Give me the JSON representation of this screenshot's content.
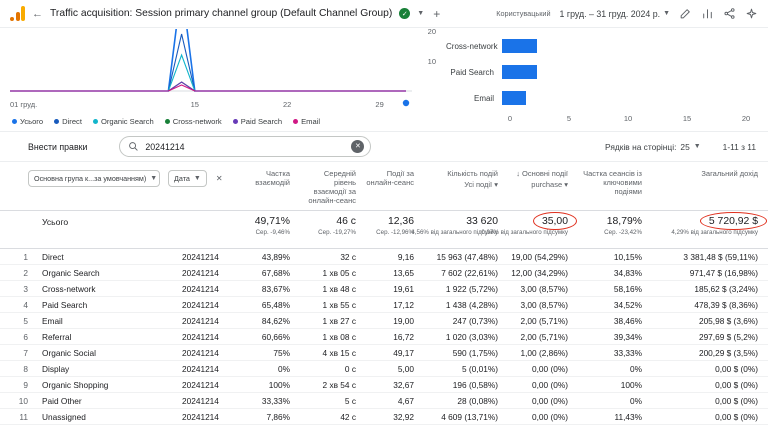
{
  "app": {
    "title": "Traffic acquisition: Session primary channel group (Default Channel Group)",
    "user_type_label": "Користувацький",
    "date_range": "1 груд. – 31 груд. 2024 р."
  },
  "line_chart": {
    "type": "line",
    "days_in_month": 31,
    "y_max_visible": 20,
    "y_ticks": [
      "20",
      "10"
    ],
    "x_axis": [
      {
        "label": "01 груд.",
        "day": 1
      },
      {
        "label": "15",
        "day": 15
      },
      {
        "label": "22",
        "day": 22
      },
      {
        "label": "29",
        "day": 29
      }
    ],
    "series": [
      {
        "name": "Усього",
        "color": "#1a73e8",
        "baseline": 0,
        "peak_day": 14,
        "peak_value": 35
      },
      {
        "name": "Direct",
        "color": "#185abc",
        "baseline": 0,
        "peak_day": 14,
        "peak_value": 19
      },
      {
        "name": "Organic Search",
        "color": "#12b5cb",
        "baseline": 0,
        "peak_day": 14,
        "peak_value": 12
      },
      {
        "name": "Cross-network",
        "color": "#188038",
        "baseline": 0,
        "peak_day": 14,
        "peak_value": 3
      },
      {
        "name": "Paid Search",
        "color": "#673ab7",
        "baseline": 0,
        "peak_day": 14,
        "peak_value": 3
      },
      {
        "name": "Email",
        "color": "#d01884",
        "baseline": 0,
        "peak_day": 14,
        "peak_value": 2
      }
    ]
  },
  "bar_chart": {
    "type": "bar",
    "categories": [
      "Cross-network",
      "Paid Search",
      "Email"
    ],
    "values": [
      3,
      3,
      2
    ],
    "x_ticks": [
      0,
      5,
      10,
      15,
      20
    ],
    "x_max": 20,
    "bar_color": "#1a73e8"
  },
  "toolbar": {
    "edit_button": "Внести правки",
    "search_value": "20241214",
    "rows_per_page_label": "Рядків на сторінці:",
    "rows_per_page_value": "25",
    "pagination": "1-11 з 11"
  },
  "table": {
    "dimension_dropdown": "Основна група к...за умовчанням)",
    "secondary_dimension": "Дата",
    "columns": [
      {
        "title": "Частка взаємодій"
      },
      {
        "title": "Середній рівень взаємодії за онлайн-сеанс"
      },
      {
        "title": "Події за онлайн-сеанс"
      },
      {
        "title": "Кількість подій",
        "sub": "Усі події"
      },
      {
        "title": "Основні події",
        "sub": "purchase",
        "sorted": "desc"
      },
      {
        "title": "Частка сеансів із ключовими подіями"
      },
      {
        "title": "Загальний дохід"
      }
    ],
    "totals": {
      "label": "Усього",
      "values": [
        {
          "main": "49,71%",
          "sub": "Сер. -9,46%"
        },
        {
          "main": "46 с",
          "sub": "Сер. -19,27%"
        },
        {
          "main": "12,36",
          "sub": "Сер. -12,96%"
        },
        {
          "main": "33 620",
          "sub": "4,56% від загального підсумку"
        },
        {
          "main": "35,00",
          "sub": "0,07% від загального підсумку",
          "circled": true
        },
        {
          "main": "18,79%",
          "sub": "Сер. -23,42%"
        },
        {
          "main": "5 720,92 $",
          "sub": "4,29% від загального підсумку",
          "circled": true
        }
      ]
    },
    "rows": [
      {
        "num": "1",
        "channel": "Direct",
        "date": "20241214",
        "values": [
          "43,89%",
          "32 с",
          "9,16",
          "15 963 (47,48%)",
          "19,00 (54,29%)",
          "10,15%",
          "3 381,48 $ (59,11%)"
        ]
      },
      {
        "num": "2",
        "channel": "Organic Search",
        "date": "20241214",
        "values": [
          "67,68%",
          "1 хв 05 с",
          "13,65",
          "7 602 (22,61%)",
          "12,00 (34,29%)",
          "34,83%",
          "971,47 $ (16,98%)"
        ]
      },
      {
        "num": "3",
        "channel": "Cross-network",
        "date": "20241214",
        "values": [
          "83,67%",
          "1 хв 48 с",
          "19,61",
          "1 922 (5,72%)",
          "3,00 (8,57%)",
          "58,16%",
          "185,62 $ (3,24%)"
        ]
      },
      {
        "num": "4",
        "channel": "Paid Search",
        "date": "20241214",
        "values": [
          "65,48%",
          "1 хв 55 с",
          "17,12",
          "1 438 (4,28%)",
          "3,00 (8,57%)",
          "34,52%",
          "478,39 $ (8,36%)"
        ]
      },
      {
        "num": "5",
        "channel": "Email",
        "date": "20241214",
        "values": [
          "84,62%",
          "1 хв 27 с",
          "19,00",
          "247 (0,73%)",
          "2,00 (5,71%)",
          "38,46%",
          "205,98 $ (3,6%)"
        ]
      },
      {
        "num": "6",
        "channel": "Referral",
        "date": "20241214",
        "values": [
          "60,66%",
          "1 хв 08 с",
          "16,72",
          "1 020 (3,03%)",
          "2,00 (5,71%)",
          "39,34%",
          "297,69 $ (5,2%)"
        ]
      },
      {
        "num": "7",
        "channel": "Organic Social",
        "date": "20241214",
        "values": [
          "75%",
          "4 хв 15 с",
          "49,17",
          "590 (1,75%)",
          "1,00 (2,86%)",
          "33,33%",
          "200,29 $ (3,5%)"
        ]
      },
      {
        "num": "8",
        "channel": "Display",
        "date": "20241214",
        "values": [
          "0%",
          "0 с",
          "5,00",
          "5 (0,01%)",
          "0,00 (0%)",
          "0%",
          "0,00 $ (0%)"
        ]
      },
      {
        "num": "9",
        "channel": "Organic Shopping",
        "date": "20241214",
        "values": [
          "100%",
          "2 хв 54 с",
          "32,67",
          "196 (0,58%)",
          "0,00 (0%)",
          "100%",
          "0,00 $ (0%)"
        ]
      },
      {
        "num": "10",
        "channel": "Paid Other",
        "date": "20241214",
        "values": [
          "33,33%",
          "5 с",
          "4,67",
          "28 (0,08%)",
          "0,00 (0%)",
          "0%",
          "0,00 $ (0%)"
        ]
      },
      {
        "num": "11",
        "channel": "Unassigned",
        "date": "20241214",
        "values": [
          "7,86%",
          "42 с",
          "32,92",
          "4 609 (13,71%)",
          "0,00 (0%)",
          "11,43%",
          "0,00 $ (0%)"
        ]
      }
    ]
  }
}
